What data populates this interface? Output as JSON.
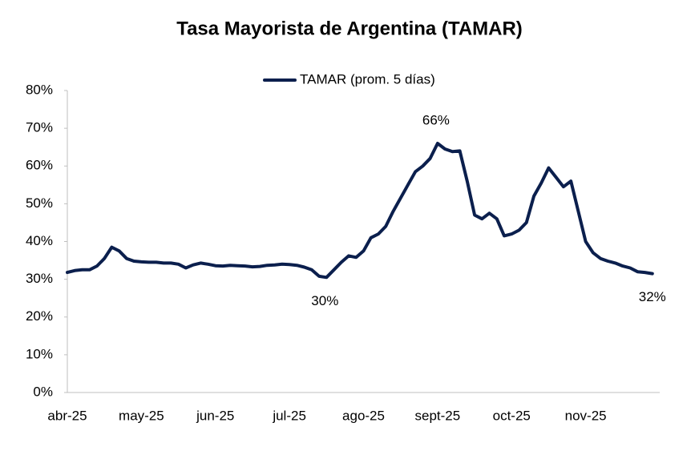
{
  "chart_data": {
    "type": "line",
    "title": "Tasa Mayorista de Argentina (TAMAR)",
    "categories": [
      "abr-25",
      null,
      null,
      null,
      null,
      null,
      null,
      null,
      null,
      null,
      "may-25",
      null,
      null,
      null,
      null,
      null,
      null,
      null,
      null,
      null,
      "jun-25",
      null,
      null,
      null,
      null,
      null,
      null,
      null,
      null,
      null,
      "jul-25",
      null,
      null,
      null,
      null,
      null,
      null,
      null,
      null,
      null,
      "ago-25",
      null,
      null,
      null,
      null,
      null,
      null,
      null,
      null,
      null,
      "sept-25",
      null,
      null,
      null,
      null,
      null,
      null,
      null,
      null,
      null,
      "oct-25",
      null,
      null,
      null,
      null,
      null,
      null,
      null,
      null,
      null,
      "nov-25",
      null,
      null,
      null,
      null,
      null,
      null,
      null,
      null,
      null
    ],
    "series": [
      {
        "name": "TAMAR (prom. 5 días)",
        "color": "#0b1f4d",
        "values": [
          31.8,
          32.3,
          32.5,
          32.5,
          33.5,
          35.5,
          38.5,
          37.5,
          35.5,
          34.8,
          34.6,
          34.5,
          34.5,
          34.3,
          34.3,
          34.0,
          33.0,
          33.8,
          34.3,
          34.0,
          33.6,
          33.5,
          33.7,
          33.6,
          33.5,
          33.3,
          33.4,
          33.7,
          33.8,
          34.0,
          33.9,
          33.7,
          33.2,
          32.5,
          30.8,
          30.5,
          32.5,
          34.5,
          36.2,
          35.8,
          37.5,
          41.0,
          42.0,
          44.0,
          48.0,
          51.5,
          55.0,
          58.5,
          60.0,
          62.0,
          66.0,
          64.5,
          63.8,
          64.0,
          56.0,
          47.0,
          46.0,
          47.5,
          46.0,
          41.5,
          42.0,
          43.0,
          45.0,
          52.0,
          55.5,
          59.5,
          57.0,
          54.5,
          56.0,
          48.0,
          40.0,
          37.0,
          35.5,
          34.8,
          34.3,
          33.5,
          33.0,
          32.0,
          31.8,
          31.5
        ],
        "value_labels": [
          null,
          null,
          null,
          null,
          null,
          null,
          null,
          null,
          null,
          null,
          null,
          null,
          null,
          null,
          null,
          null,
          null,
          null,
          null,
          null,
          null,
          null,
          null,
          null,
          null,
          null,
          null,
          null,
          null,
          null,
          null,
          null,
          null,
          null,
          null,
          "30%",
          null,
          null,
          null,
          null,
          null,
          null,
          null,
          null,
          null,
          null,
          null,
          null,
          null,
          null,
          "66%",
          null,
          null,
          null,
          null,
          null,
          null,
          null,
          null,
          null,
          null,
          null,
          null,
          null,
          null,
          null,
          null,
          null,
          null,
          null,
          null,
          null,
          null,
          null,
          null,
          null,
          null,
          null,
          null,
          "32%"
        ]
      }
    ],
    "ylim": [
      0,
      80
    ],
    "yticks": [
      {
        "value": 0,
        "label": "0%"
      },
      {
        "value": 10,
        "label": "10%"
      },
      {
        "value": 20,
        "label": "20%"
      },
      {
        "value": 30,
        "label": "30%"
      },
      {
        "value": 40,
        "label": "40%"
      },
      {
        "value": 50,
        "label": "50%"
      },
      {
        "value": 60,
        "label": "60%"
      },
      {
        "value": 70,
        "label": "70%"
      },
      {
        "value": 80,
        "label": "80%"
      }
    ],
    "grid": false,
    "legend": "top"
  }
}
